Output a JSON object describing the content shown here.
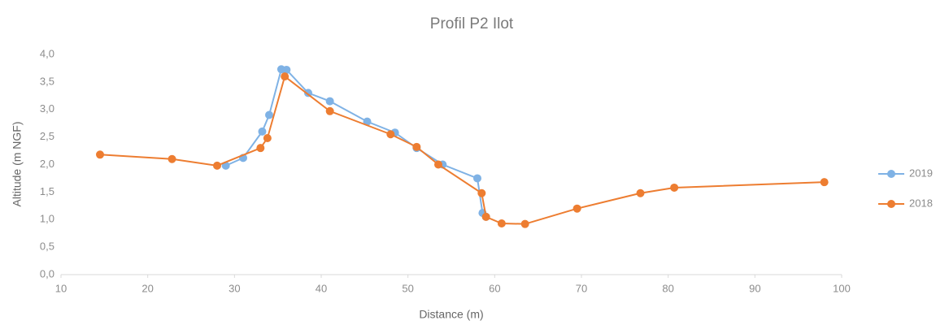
{
  "chart_data": {
    "type": "line",
    "title": "Profil P2 Ilot",
    "x_label": "Distance (m)",
    "y_label": "Altitude (m NGF)",
    "xlim": [
      10,
      100
    ],
    "xticks": [
      10,
      20,
      30,
      40,
      50,
      60,
      70,
      80,
      90,
      100
    ],
    "ylim": [
      0,
      4
    ],
    "yticks": [
      {
        "value": 0,
        "label": "0,0"
      },
      {
        "value": 0.5,
        "label": "0,5"
      },
      {
        "value": 1,
        "label": "1,0"
      },
      {
        "value": 1.5,
        "label": "1,5"
      },
      {
        "value": 2,
        "label": "2,0"
      },
      {
        "value": 2.5,
        "label": "2,5"
      },
      {
        "value": 3,
        "label": "3,0"
      },
      {
        "value": 3.5,
        "label": "3,5"
      },
      {
        "value": 4,
        "label": "4,0"
      }
    ],
    "grid": false,
    "legend": "right",
    "series": [
      {
        "name": "2019",
        "color": "#7fb2e5",
        "x": [
          29,
          31,
          33.2,
          34,
          35.4,
          36,
          38.5,
          41,
          45.3,
          48.5,
          51,
          54,
          58,
          58.6,
          59
        ],
        "values": [
          1.98,
          2.12,
          2.6,
          2.9,
          3.73,
          3.72,
          3.3,
          3.15,
          2.78,
          2.58,
          2.3,
          2.0,
          1.75,
          1.12,
          1.05
        ]
      },
      {
        "name": "2018",
        "color": "#ed7d31",
        "x": [
          14.5,
          22.8,
          28,
          33,
          33.8,
          35.8,
          41,
          48,
          51,
          53.5,
          58.5,
          59,
          60.8,
          63.5,
          69.5,
          76.8,
          80.7,
          98
        ],
        "values": [
          2.18,
          2.1,
          1.98,
          2.3,
          2.48,
          3.6,
          2.97,
          2.55,
          2.32,
          2.0,
          1.48,
          1.05,
          0.93,
          0.92,
          1.2,
          1.48,
          1.58,
          1.68
        ]
      }
    ]
  }
}
